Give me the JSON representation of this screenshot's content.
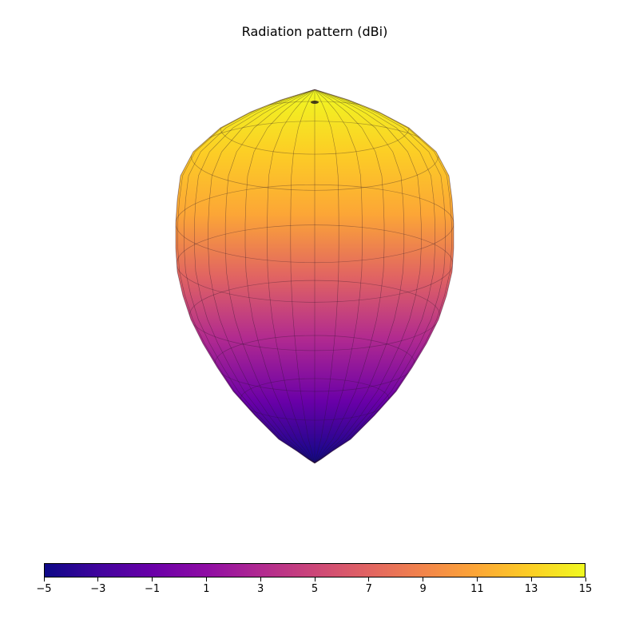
{
  "chart_data": {
    "type": "surface3d",
    "title": "Radiation pattern (dBi)",
    "quantity": "gain (dBi)",
    "colormap": "plasma",
    "colorbar": {
      "orientation": "horizontal",
      "placement": "bottom",
      "range": [
        -5,
        15
      ],
      "ticks": [
        -5,
        -3,
        -1,
        1,
        3,
        5,
        7,
        9,
        11,
        13,
        15
      ],
      "tick_labels": [
        "−5",
        "−3",
        "−1",
        "1",
        "3",
        "5",
        "7",
        "9",
        "11",
        "13",
        "15"
      ]
    },
    "gain_vs_elevation": {
      "theta_deg": [
        0,
        30,
        60,
        90,
        120,
        150,
        180
      ],
      "gain_dbi": [
        15,
        13.5,
        11,
        7.5,
        3,
        -2,
        -5
      ]
    },
    "axes_visible": false
  }
}
